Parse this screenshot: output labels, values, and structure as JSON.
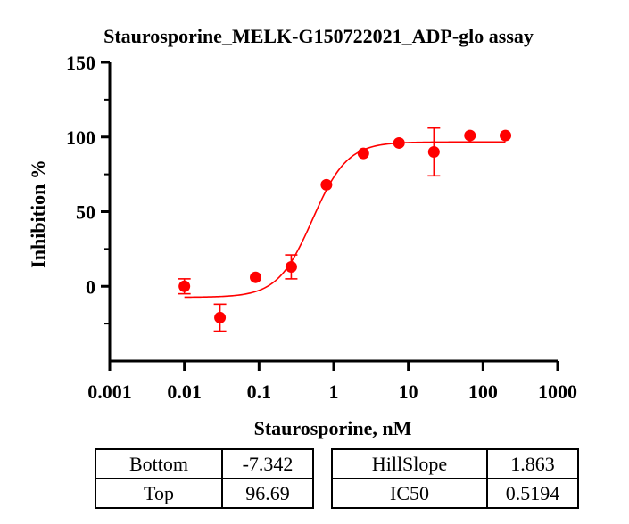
{
  "chart_data": {
    "type": "scatter",
    "title": "Staurosporine_MELK-G150722021_ADP-glo assay",
    "xlabel": "Staurosporine, nM",
    "ylabel": "Inhibition %",
    "x_scale": "log",
    "xlim": [
      0.001,
      1000
    ],
    "ylim": [
      -50,
      150
    ],
    "x_ticks": [
      0.001,
      0.01,
      0.1,
      1,
      10,
      100,
      1000
    ],
    "x_tick_labels": [
      "0.001",
      "0.01",
      "0.1",
      "1",
      "10",
      "100",
      "1000"
    ],
    "y_ticks": [
      0,
      50,
      100,
      150
    ],
    "y_tick_labels": [
      "0",
      "50",
      "100",
      "150"
    ],
    "grid": false,
    "color": "#ff0000",
    "points": [
      {
        "x": 0.01,
        "y": 0,
        "err": 5
      },
      {
        "x": 0.03,
        "y": -21,
        "err": 9
      },
      {
        "x": 0.09,
        "y": 6,
        "err": 0
      },
      {
        "x": 0.27,
        "y": 13,
        "err": 8
      },
      {
        "x": 0.8,
        "y": 68,
        "err": 0
      },
      {
        "x": 2.5,
        "y": 89,
        "err": 0
      },
      {
        "x": 7.5,
        "y": 96,
        "err": 0
      },
      {
        "x": 22,
        "y": 90,
        "err": 16
      },
      {
        "x": 67,
        "y": 101,
        "err": 0
      },
      {
        "x": 200,
        "y": 101,
        "err": 0
      }
    ],
    "fit": {
      "model": "4PL",
      "bottom": -7.342,
      "top": 96.69,
      "hillslope": 1.863,
      "ic50": 0.5194,
      "x_range": [
        0.01,
        200
      ]
    }
  },
  "parameters": {
    "left": [
      {
        "name": "Bottom",
        "value": "-7.342"
      },
      {
        "name": "Top",
        "value": "96.69"
      }
    ],
    "right": [
      {
        "name": "HillSlope",
        "value": "1.863"
      },
      {
        "name": "IC50",
        "value": "0.5194"
      }
    ]
  }
}
